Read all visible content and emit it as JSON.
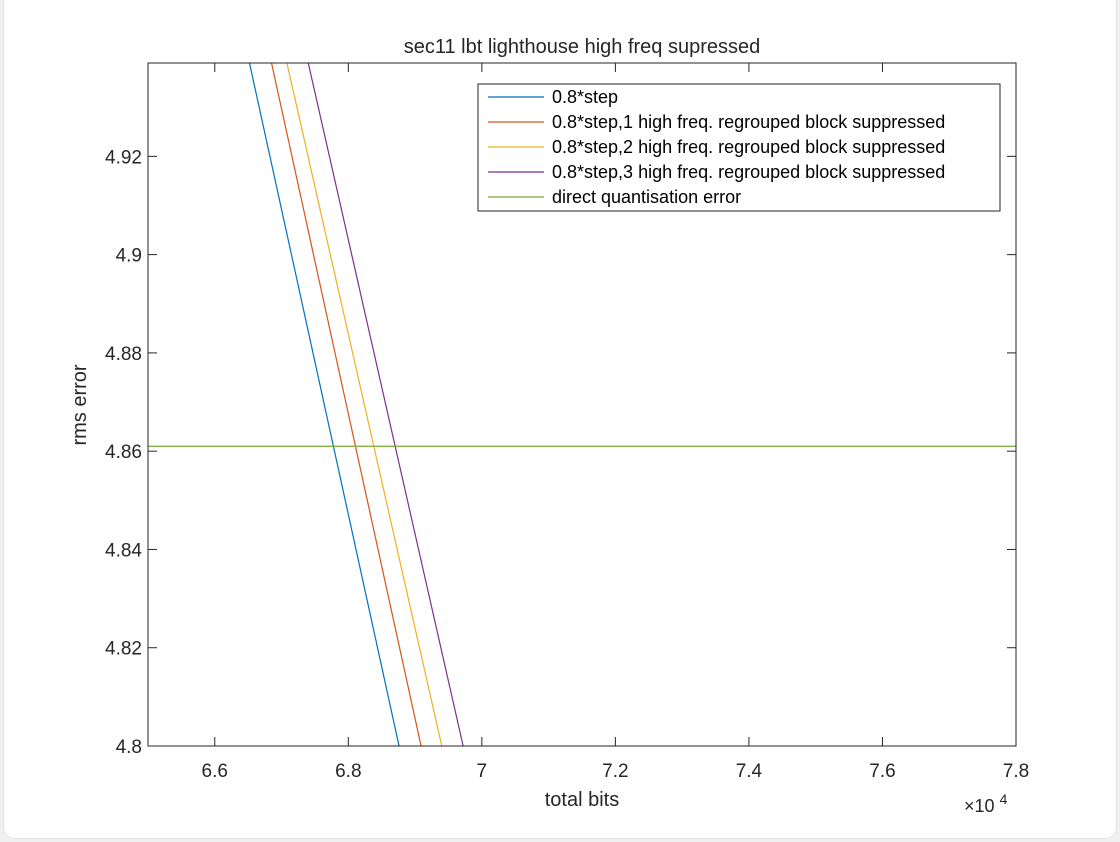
{
  "chart_data": {
    "type": "line",
    "title": "sec11 lbt lighthouse high freq supressed",
    "xlabel": "total bits",
    "ylabel": "rms error",
    "x_multiplier_label": "×10",
    "x_multiplier_exponent": "4",
    "xlim": [
      6.5,
      7.8
    ],
    "ylim": [
      4.8,
      4.939
    ],
    "x_ticks": [
      6.6,
      6.8,
      7.0,
      7.2,
      7.4,
      7.6,
      7.8
    ],
    "x_tick_labels": [
      "6.6",
      "6.8",
      "7",
      "7.2",
      "7.4",
      "7.6",
      "7.8"
    ],
    "y_ticks": [
      4.8,
      4.82,
      4.84,
      4.86,
      4.88,
      4.9,
      4.92
    ],
    "y_tick_labels": [
      "4.8",
      "4.82",
      "4.84",
      "4.86",
      "4.88",
      "4.9",
      "4.92"
    ],
    "grid": false,
    "legend_position": "top-right",
    "series": [
      {
        "name": "0.8*step",
        "color": "#0072BD",
        "x": [
          6.652,
          6.876
        ],
        "y": [
          4.939,
          4.8
        ]
      },
      {
        "name": "0.8*step,1 high freq. regrouped block suppressed",
        "color": "#D95319",
        "x": [
          6.685,
          6.909
        ],
        "y": [
          4.939,
          4.8
        ]
      },
      {
        "name": "0.8*step,2 high freq. regrouped block suppressed",
        "color": "#EDB120",
        "x": [
          6.708,
          6.94
        ],
        "y": [
          4.939,
          4.8
        ]
      },
      {
        "name": "0.8*step,3 high freq. regrouped block suppressed",
        "color": "#7E2F8E",
        "x": [
          6.74,
          6.972
        ],
        "y": [
          4.939,
          4.8
        ]
      },
      {
        "name": "direct quantisation error",
        "color": "#77AC30",
        "x": [
          6.5,
          7.8
        ],
        "y": [
          4.861,
          4.861
        ]
      }
    ]
  }
}
